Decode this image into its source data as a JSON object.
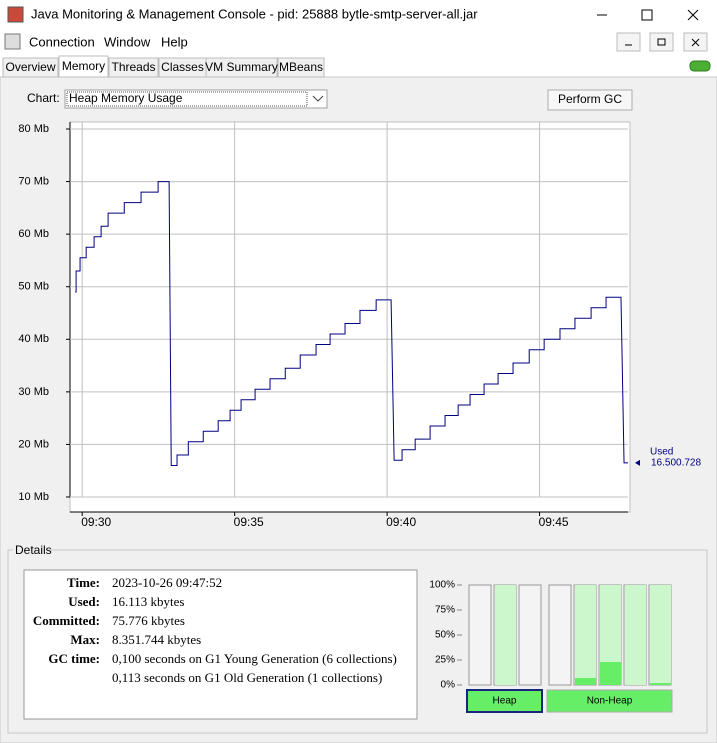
{
  "window": {
    "title": "Java Monitoring & Management Console - pid: 25888 bytle-smtp-server-all.jar"
  },
  "menu": [
    "Connection",
    "Window",
    "Help"
  ],
  "tabs": [
    "Overview",
    "Memory",
    "Threads",
    "Classes",
    "VM Summary",
    "MBeans"
  ],
  "chart_selector": {
    "label": "Chart:",
    "value": "Heap Memory Usage"
  },
  "perform_gc": "Perform GC",
  "chart_data": [
    {
      "type": "line",
      "x": [
        569.77,
        569.8,
        569.8,
        569.93,
        569.93,
        570.13,
        570.13,
        570.39,
        570.39,
        570.62,
        570.62,
        570.85,
        570.85,
        571.38,
        571.38,
        571.93,
        571.93,
        572.49,
        572.49,
        572.85,
        572.92,
        573.11,
        573.11,
        573.48,
        573.48,
        573.97,
        573.97,
        574.46,
        574.46,
        574.85,
        574.85,
        575.21,
        575.21,
        575.67,
        575.67,
        576.16,
        576.16,
        576.66,
        576.66,
        577.15,
        577.15,
        577.67,
        577.67,
        578.13,
        578.13,
        578.62,
        578.62,
        579.11,
        579.11,
        579.64,
        579.64,
        580.13,
        580.23,
        580.49,
        580.49,
        580.92,
        580.92,
        581.41,
        581.41,
        581.9,
        581.9,
        582.33,
        582.33,
        582.72,
        582.72,
        583.18,
        583.18,
        583.64,
        583.64,
        584.13,
        584.13,
        584.66,
        584.66,
        585.15,
        585.15,
        585.67,
        585.67,
        586.16,
        586.16,
        586.69,
        586.69,
        587.18,
        587.18,
        587.67,
        587.77,
        587.9
      ],
      "series": [
        {
          "name": "Used",
          "color": "#000080",
          "values": [
            49,
            49,
            53,
            53,
            55.5,
            55.5,
            57.5,
            57.5,
            59.5,
            59.5,
            61.5,
            61.5,
            64,
            64,
            66,
            66,
            68,
            68,
            70,
            70,
            16,
            16,
            18,
            18,
            20.5,
            20.5,
            22.5,
            22.5,
            24.5,
            24.5,
            26.5,
            26.5,
            28.5,
            28.5,
            30.5,
            30.5,
            32.5,
            32.5,
            34.5,
            34.5,
            37,
            37,
            39,
            39,
            41,
            41,
            43,
            43,
            45.5,
            45.5,
            47.5,
            47.5,
            17,
            17,
            19,
            19,
            21,
            21,
            23.5,
            23.5,
            25.5,
            25.5,
            27.5,
            27.5,
            29.5,
            29.5,
            31.5,
            31.5,
            33.5,
            33.5,
            35.5,
            35.5,
            38,
            38,
            40,
            40,
            42,
            42,
            44,
            44,
            46,
            46,
            48,
            48,
            16.500728,
            16.500728
          ],
          "value_labels": [
            null,
            null,
            null,
            null,
            null,
            null,
            null,
            null,
            null,
            null,
            null,
            null,
            null,
            null,
            null,
            null,
            null,
            null,
            null,
            null,
            null,
            null,
            null,
            null,
            null,
            null,
            null,
            null,
            null,
            null,
            null,
            null,
            null,
            null,
            null,
            null,
            null,
            null,
            null,
            null,
            null,
            null,
            null,
            null,
            null,
            null,
            null,
            null,
            null,
            null,
            null,
            null,
            null,
            null,
            null,
            null,
            null,
            null,
            null,
            null,
            null,
            null,
            null,
            null,
            null,
            null,
            null,
            null,
            null,
            null,
            null,
            null,
            null,
            null,
            null,
            null,
            null,
            null,
            null,
            null,
            null,
            null,
            null,
            null,
            null,
            "16.500.728"
          ]
        }
      ],
      "xlim": [
        569.6,
        587.9
      ],
      "xticks": [
        {
          "value": 570,
          "label": "09:30"
        },
        {
          "value": 575,
          "label": "09:35"
        },
        {
          "value": 580,
          "label": "09:40"
        },
        {
          "value": 585,
          "label": "09:45"
        }
      ],
      "ylim": [
        10,
        80
      ],
      "yticks": [
        {
          "value": 10,
          "label": "10 Mb"
        },
        {
          "value": 20,
          "label": "20 Mb"
        },
        {
          "value": 30,
          "label": "30 Mb"
        },
        {
          "value": 40,
          "label": "40 Mb"
        },
        {
          "value": 50,
          "label": "50 Mb"
        },
        {
          "value": 60,
          "label": "60 Mb"
        },
        {
          "value": 70,
          "label": "70 Mb"
        },
        {
          "value": 80,
          "label": "80 Mb"
        }
      ],
      "grid": true
    },
    {
      "type": "bar",
      "ylim": [
        0,
        100
      ],
      "yticks": [
        {
          "value": 100,
          "label": "100%"
        },
        {
          "value": 75,
          "label": "75%"
        },
        {
          "value": 50,
          "label": "50%"
        },
        {
          "value": 25,
          "label": "25%"
        },
        {
          "value": 0,
          "label": "0%"
        }
      ],
      "groups": [
        {
          "name": "Heap",
          "series": [
            {
              "color": "#ccf7cc",
              "values": [
                0,
                100,
                0
              ]
            },
            {
              "color": "#66ee66",
              "values": [
                0,
                0,
                0
              ]
            }
          ]
        },
        {
          "name": "Non-Heap",
          "series": [
            {
              "color": "#ccf7cc",
              "values": [
                0,
                100,
                100,
                100,
                100
              ]
            },
            {
              "color": "#66ee66",
              "values": [
                0,
                7,
                23,
                0,
                2
              ]
            }
          ]
        }
      ]
    }
  ],
  "details": {
    "title": "Details",
    "rows": [
      {
        "label": "Time:",
        "value": "2023-10-26 09:47:52"
      },
      {
        "label": "Used:",
        "value": "16.113 kbytes"
      },
      {
        "label": "Committed:",
        "value": "75.776 kbytes"
      },
      {
        "label": "Max:",
        "value": "8.351.744 kbytes"
      },
      {
        "label": "GC time:",
        "value": "0,100 seconds on G1 Young Generation (6 collections)"
      }
    ],
    "extra_lines": [
      "0,113 seconds on G1 Old Generation (1 collections)"
    ]
  }
}
